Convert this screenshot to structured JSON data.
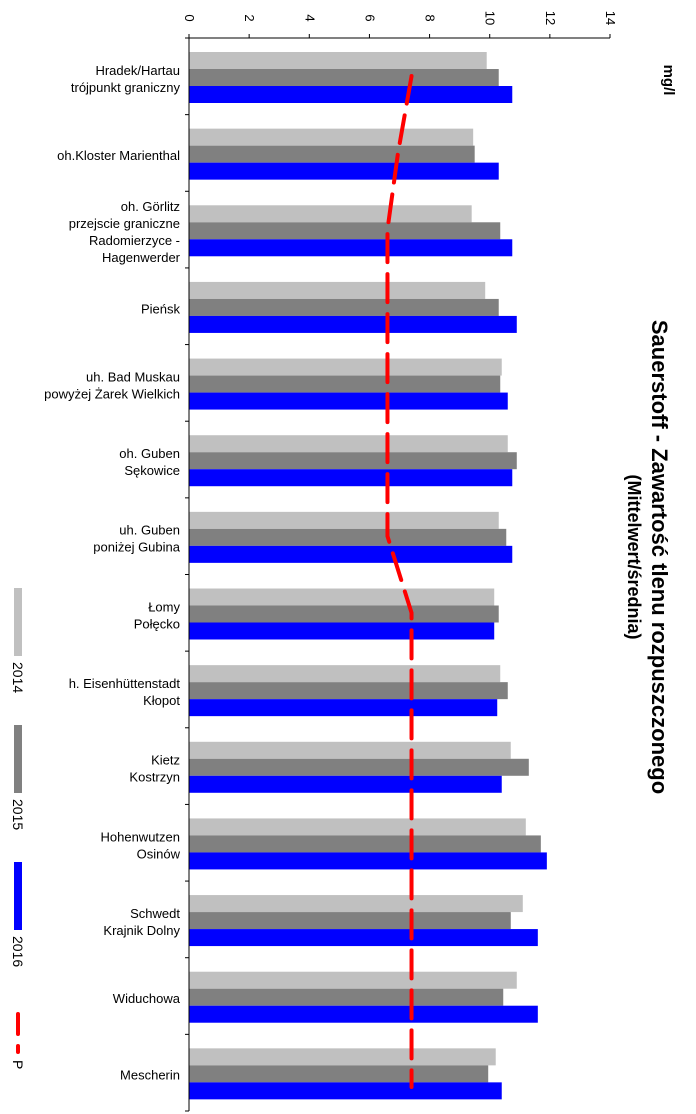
{
  "chart_data": {
    "type": "bar",
    "orientation": "horizontal",
    "title": "Sauerstoff - Zawartość tlenu rozpuszczonego",
    "subtitle": "(Mittelwert/średnia)",
    "unit_label": "mg/l",
    "xlim": [
      0,
      14
    ],
    "x_ticks": [
      "0",
      "2",
      "4",
      "6",
      "8",
      "10",
      "12",
      "14"
    ],
    "grid": false,
    "legend_placement": "bottom-left",
    "categories": [
      [
        "Hradek/Hartau",
        "trójpunkt graniczny"
      ],
      [
        "oh.Kloster Marienthal"
      ],
      [
        "oh. Görlitz",
        "przejscie graniczne",
        "Radomierzyce -",
        "Hagenwerder"
      ],
      [
        "Pieńsk"
      ],
      [
        "uh. Bad Muskau",
        "powyżej Żarek Wielkich"
      ],
      [
        "oh. Guben",
        "Sękowice"
      ],
      [
        "uh. Guben",
        "poniżej Gubina"
      ],
      [
        "Łomy",
        "Połęcko"
      ],
      [
        "h. Eisenhüttenstadt",
        "Kłopot"
      ],
      [
        "Kietz",
        "Kostrzyn"
      ],
      [
        "Hohenwutzen",
        "Osinów"
      ],
      [
        "Schwedt",
        "Krajnik Dolny"
      ],
      [
        "Widuchowa"
      ],
      [
        "Mescherin"
      ]
    ],
    "series": [
      {
        "name": "2014",
        "color": "#c0c0c0",
        "values": [
          9.9,
          9.45,
          9.4,
          9.85,
          10.4,
          10.6,
          10.3,
          10.15,
          10.35,
          10.7,
          11.2,
          11.1,
          10.9,
          10.2
        ]
      },
      {
        "name": "2015",
        "color": "#808080",
        "values": [
          10.3,
          9.5,
          10.35,
          10.3,
          10.35,
          10.9,
          10.55,
          10.3,
          10.6,
          11.3,
          11.7,
          10.7,
          10.45,
          9.95
        ]
      },
      {
        "name": "2016",
        "color": "#0000ff",
        "values": [
          10.75,
          10.3,
          10.75,
          10.9,
          10.6,
          10.75,
          10.75,
          10.15,
          10.25,
          10.4,
          11.9,
          11.6,
          11.6,
          10.4
        ]
      }
    ],
    "reference_line": {
      "name": "P",
      "color": "#ff0000",
      "values": [
        7.4,
        6.95,
        6.6,
        6.6,
        6.6,
        6.6,
        6.6,
        7.4,
        7.4,
        7.4,
        7.4,
        7.4,
        7.4,
        7.4
      ]
    }
  }
}
